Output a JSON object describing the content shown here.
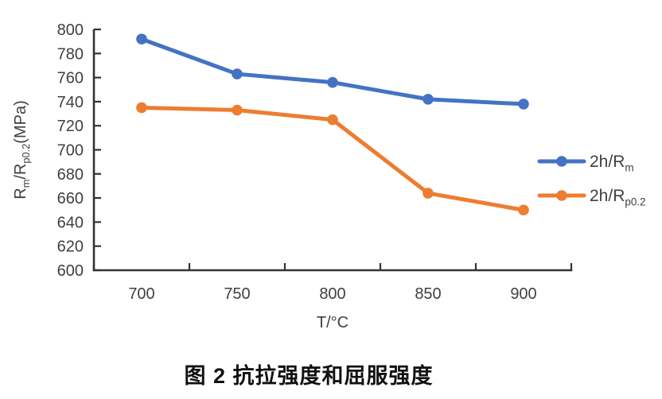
{
  "caption": "图 2 抗拉强度和屈服强度",
  "chart_data": {
    "type": "line",
    "title": "图 2 抗拉强度和屈服强度",
    "categories": [
      "700",
      "750",
      "800",
      "850",
      "900"
    ],
    "x_values": [
      700,
      750,
      800,
      850,
      900
    ],
    "series": [
      {
        "name": "2h/Rm",
        "label_segments": [
          {
            "t": "2h/R"
          },
          {
            "t": "m",
            "sub": true
          }
        ],
        "color": "#4472C4",
        "values": [
          792,
          763,
          756,
          742,
          738
        ]
      },
      {
        "name": "2h/Rp0.2",
        "label_segments": [
          {
            "t": "2h/R"
          },
          {
            "t": "p0.2",
            "sub": true
          }
        ],
        "color": "#ED7D31",
        "values": [
          735,
          733,
          725,
          664,
          650
        ]
      }
    ],
    "xlabel": "T/°C",
    "ylabel": "Rm/Rp0.2(MPa)",
    "ylabel_segments": [
      {
        "t": "R"
      },
      {
        "t": "m",
        "sub": true
      },
      {
        "t": "/R"
      },
      {
        "t": "p0.2",
        "sub": true
      },
      {
        "t": "(MPa)"
      }
    ],
    "ylim": [
      600,
      800
    ],
    "ytick_step": 20,
    "grid": false,
    "legend_position": "right",
    "marker": "circle",
    "axis_color": "#333333",
    "text_color": "#404040"
  }
}
